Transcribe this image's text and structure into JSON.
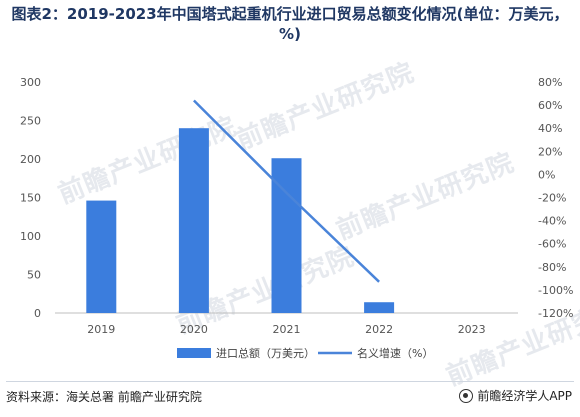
{
  "title": "图表2：2019-2023年中国塔式起重机行业进口贸易总额变化情况(单位：万美元，%)",
  "watermark_text": "前瞻产业研究院",
  "footer": {
    "source": "资料来源：海关总署 前瞻产业研究院",
    "brand": "前瞻经济学人APP"
  },
  "colors": {
    "bar": "#3b7ddd",
    "line": "#4a84d9",
    "axis": "#bfbfbf",
    "title": "#1f3763"
  },
  "chart_data": {
    "type": "bar",
    "categories": [
      "2019",
      "2020",
      "2021",
      "2022",
      "2023"
    ],
    "series": [
      {
        "name": "进口总额（万美元）",
        "type": "bar",
        "axis": "left",
        "values": [
          146,
          240,
          201,
          14,
          null
        ]
      },
      {
        "name": "名义增速（%）",
        "type": "line",
        "axis": "right",
        "values": [
          null,
          64,
          -16,
          -93,
          null
        ]
      }
    ],
    "y_left": {
      "range": [
        0,
        300
      ],
      "ticks": [
        "0",
        "50",
        "100",
        "150",
        "200",
        "250",
        "300"
      ]
    },
    "y_right": {
      "range": [
        -120,
        80
      ],
      "ticks": [
        "-120%",
        "-100%",
        "-80%",
        "-60%",
        "-40%",
        "-20%",
        "0%",
        "20%",
        "40%",
        "60%",
        "80%"
      ]
    },
    "grid": false,
    "legend_position": "bottom"
  }
}
